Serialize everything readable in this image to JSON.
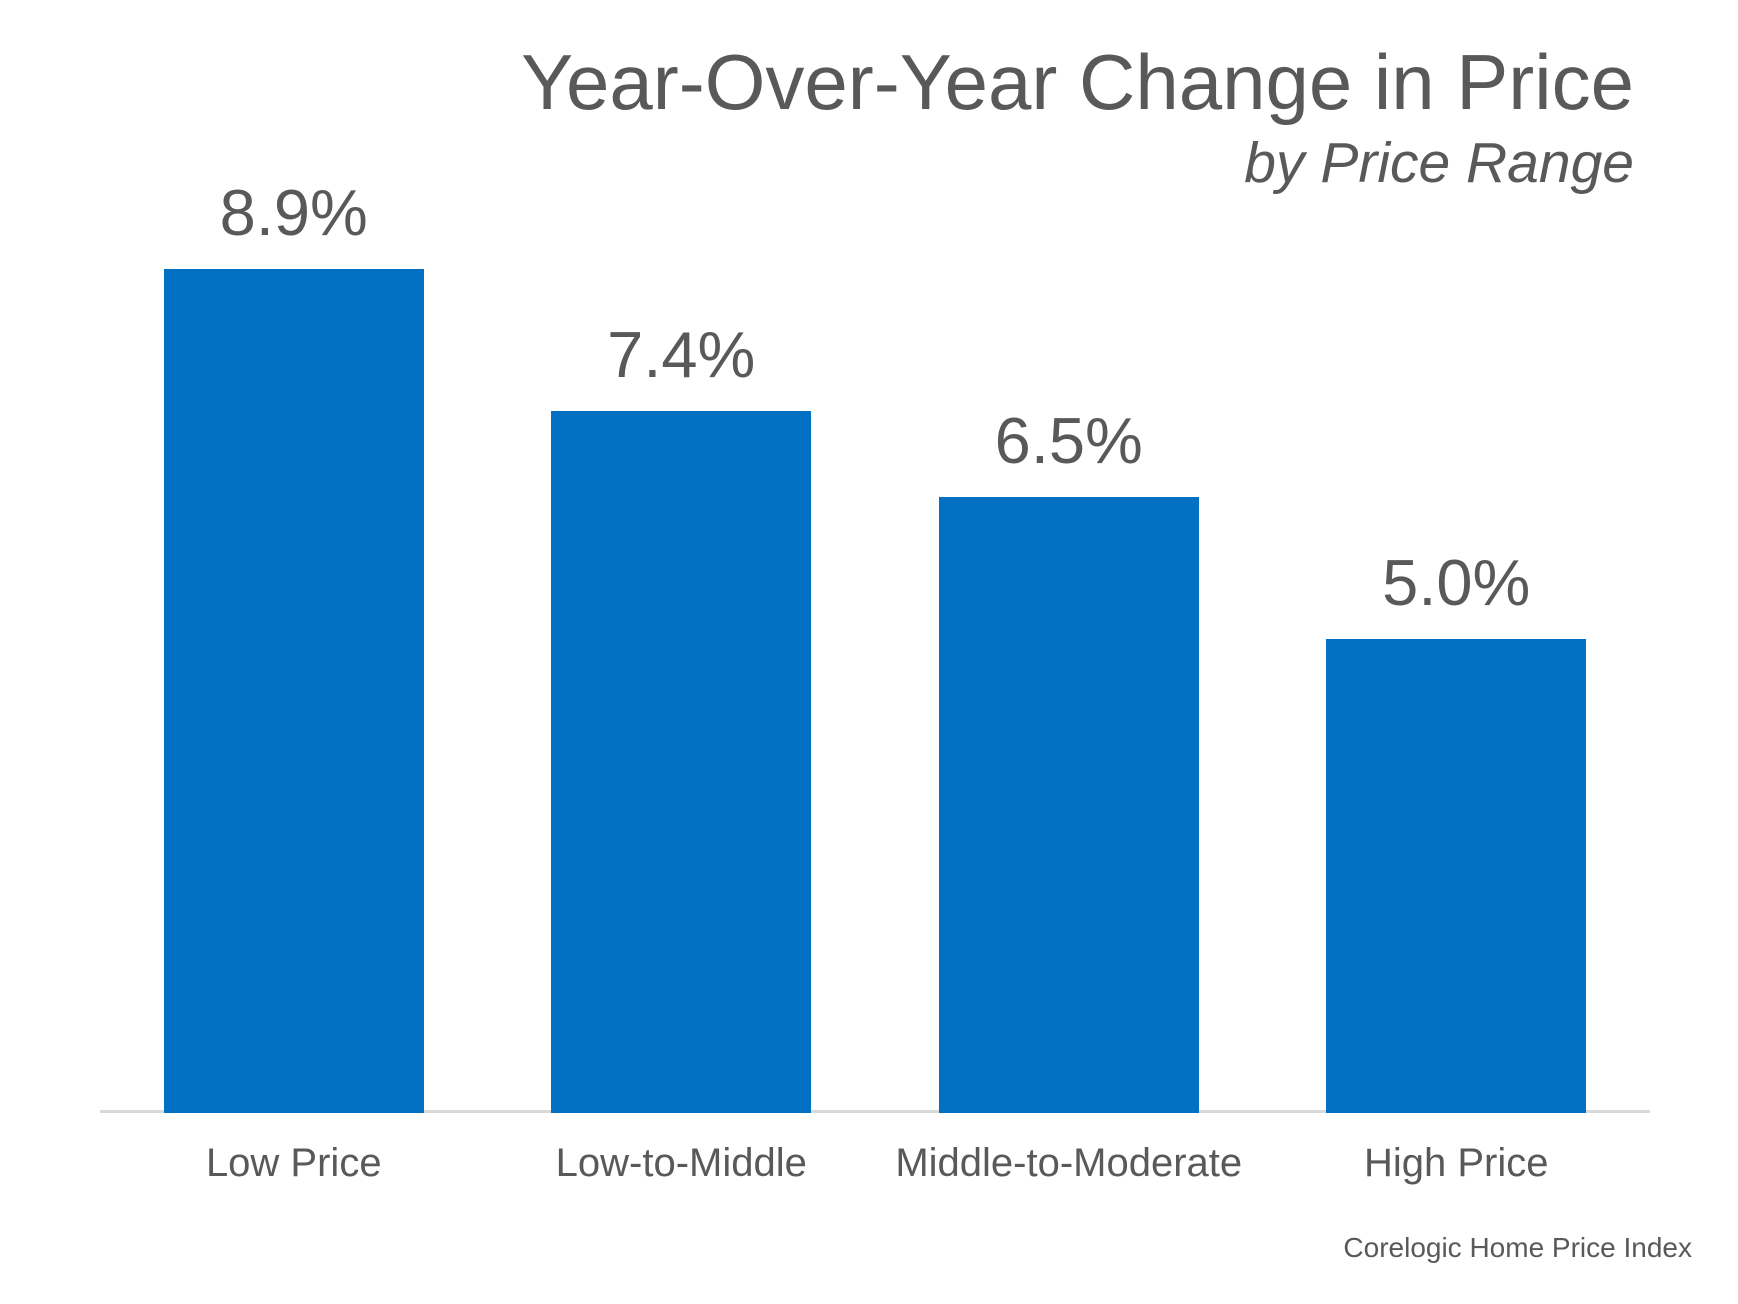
{
  "colors": {
    "bar": "#0271c3",
    "text": "#595959",
    "axis": "#d9d9d9",
    "background": "#ffffff"
  },
  "chart_data": {
    "type": "bar",
    "title": "Year-Over-Year Change in Price",
    "subtitle": "by Price Range",
    "categories": [
      "Low Price",
      "Low-to-Middle",
      "Middle-to-Moderate",
      "High Price"
    ],
    "values": [
      8.9,
      7.4,
      6.5,
      5.0
    ],
    "value_labels": [
      "8.9%",
      "7.4%",
      "6.5%",
      "5.0%"
    ],
    "xlabel": "",
    "ylabel": "",
    "ylim": [
      0,
      10
    ],
    "grid": false,
    "legend": false,
    "bar_color_hex": "#0271c3",
    "source": "Corelogic Home Price Index"
  }
}
